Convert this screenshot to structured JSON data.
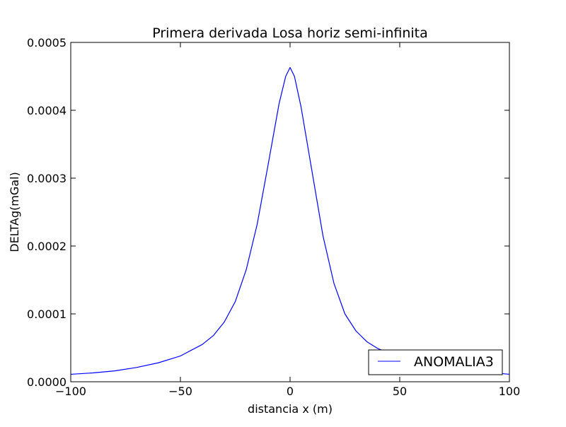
{
  "chart_data": {
    "type": "line",
    "title": "Primera derivada Losa horiz semi-infinita",
    "xlabel": "distancia x (m)",
    "ylabel": "DELTAg(mGal)",
    "xlim": [
      -100,
      100
    ],
    "ylim": [
      0,
      0.0005
    ],
    "x_ticks": [
      -100,
      -50,
      0,
      50,
      100
    ],
    "x_tick_labels": [
      "−100",
      "−50",
      "0",
      "50",
      "100"
    ],
    "y_ticks": [
      0,
      0.0001,
      0.0002,
      0.0003,
      0.0004,
      0.0005
    ],
    "y_tick_labels": [
      "0.0000",
      "0.0001",
      "0.0002",
      "0.0003",
      "0.0004",
      "0.0005"
    ],
    "grid": false,
    "legend_position": "lower-right",
    "series": [
      {
        "name": "ANOMALIA3",
        "color": "#0000ff",
        "x": [
          -100,
          -90,
          -80,
          -70,
          -60,
          -50,
          -40,
          -35,
          -30,
          -25,
          -20,
          -15,
          -10,
          -5,
          -2,
          0,
          2,
          5,
          10,
          15,
          20,
          25,
          30,
          35,
          40,
          45,
          50,
          60,
          70,
          80,
          90,
          100
        ],
        "y": [
          1.1e-05,
          1.3e-05,
          1.6e-05,
          2.1e-05,
          2.8e-05,
          3.8e-05,
          5.5e-05,
          6.8e-05,
          8.8e-05,
          0.000118,
          0.000165,
          0.000232,
          0.00032,
          0.00041,
          0.00045,
          0.000463,
          0.00045,
          0.000405,
          0.00031,
          0.000215,
          0.000145,
          0.0001,
          7.5e-05,
          5.9e-05,
          4.9e-05,
          4.2e-05,
          3.7e-05,
          2.9e-05,
          2.2e-05,
          1.7e-05,
          1.4e-05,
          1.1e-05
        ]
      }
    ]
  }
}
